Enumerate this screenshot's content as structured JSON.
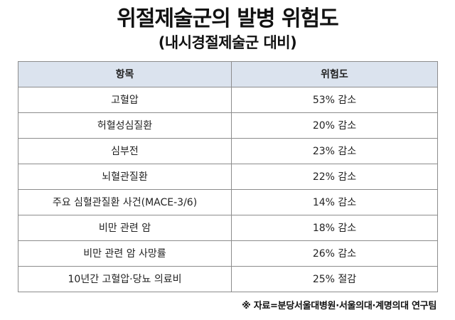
{
  "title": "위절제술군의 발병 위험도",
  "subtitle": "(내시경절제술군 대비)",
  "table": {
    "headers": [
      "항목",
      "위험도"
    ],
    "rows": [
      [
        "고혈압",
        "53% 감소"
      ],
      [
        "허혈성심질환",
        "20% 감소"
      ],
      [
        "심부전",
        "23% 감소"
      ],
      [
        "뇌혈관질환",
        "22% 감소"
      ],
      [
        "주요 심혈관질환 사건(MACE-3/6)",
        "14% 감소"
      ],
      [
        "비만 관련 암",
        "18% 감소"
      ],
      [
        "비만 관련 암 사망률",
        "26% 감소"
      ],
      [
        "10년간 고혈압·당뇨 의료비",
        "25% 절감"
      ]
    ]
  },
  "source": "※ 자료=분당서울대병원·서울의대·계명의대 연구팀",
  "colors": {
    "header_background": "#dbe3ee",
    "border": "#8c8c8c"
  }
}
